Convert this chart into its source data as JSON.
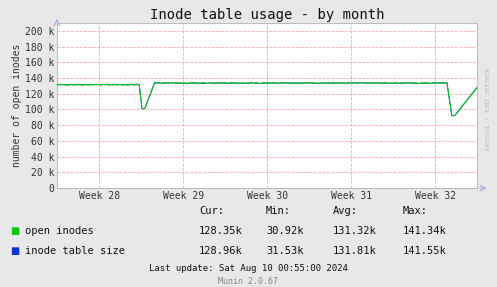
{
  "title": "Inode table usage - by month",
  "ylabel": "number of open inodes",
  "background_color": "#e8e8e8",
  "plot_bg_color": "#ffffff",
  "grid_color": "#ffaaaa",
  "yticks": [
    0,
    20000,
    40000,
    60000,
    80000,
    100000,
    120000,
    140000,
    160000,
    180000,
    200000
  ],
  "ytick_labels": [
    "0",
    "20 k",
    "40 k",
    "60 k",
    "80 k",
    "100 k",
    "120 k",
    "140 k",
    "160 k",
    "180 k",
    "200 k"
  ],
  "xtick_labels": [
    "Week 28",
    "Week 29",
    "Week 30",
    "Week 31",
    "Week 32"
  ],
  "ylim": [
    0,
    210000
  ],
  "line1_color": "#00cc00",
  "line2_color": "#0033cc",
  "legend_labels": [
    "open inodes",
    "inode table size"
  ],
  "stats_header": [
    "Cur:",
    "Min:",
    "Avg:",
    "Max:"
  ],
  "stats_line1": [
    "128.35k",
    "30.92k",
    "131.32k",
    "141.34k"
  ],
  "stats_line2": [
    "128.96k",
    "31.53k",
    "131.81k",
    "141.55k"
  ],
  "last_update": "Last update: Sat Aug 10 00:55:00 2024",
  "munin_version": "Munin 2.0.67",
  "rrdtool_text": "RRDTOOL / TOBI OETIKER",
  "title_fontsize": 10,
  "axis_label_fontsize": 7,
  "tick_fontsize": 7,
  "stats_fontsize": 7.5
}
